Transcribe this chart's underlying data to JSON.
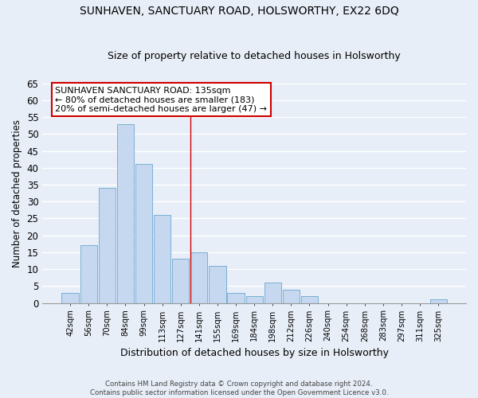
{
  "title": "SUNHAVEN, SANCTUARY ROAD, HOLSWORTHY, EX22 6DQ",
  "subtitle": "Size of property relative to detached houses in Holsworthy",
  "xlabel": "Distribution of detached houses by size in Holsworthy",
  "ylabel": "Number of detached properties",
  "bar_labels": [
    "42sqm",
    "56sqm",
    "70sqm",
    "84sqm",
    "99sqm",
    "113sqm",
    "127sqm",
    "141sqm",
    "155sqm",
    "169sqm",
    "184sqm",
    "198sqm",
    "212sqm",
    "226sqm",
    "240sqm",
    "254sqm",
    "268sqm",
    "283sqm",
    "297sqm",
    "311sqm",
    "325sqm"
  ],
  "bar_values": [
    3,
    17,
    34,
    53,
    41,
    26,
    13,
    15,
    11,
    3,
    2,
    6,
    4,
    2,
    0,
    0,
    0,
    0,
    0,
    0,
    1
  ],
  "bar_color": "#c5d8f0",
  "bar_edge_color": "#7aafd4",
  "highlight_index": 7,
  "highlight_line_color": "#cc0000",
  "ylim": [
    0,
    65
  ],
  "yticks": [
    0,
    5,
    10,
    15,
    20,
    25,
    30,
    35,
    40,
    45,
    50,
    55,
    60,
    65
  ],
  "annotation_title": "SUNHAVEN SANCTUARY ROAD: 135sqm",
  "annotation_line1": "← 80% of detached houses are smaller (183)",
  "annotation_line2": "20% of semi-detached houses are larger (47) →",
  "annotation_box_color": "#ffffff",
  "annotation_box_edge": "#cc0000",
  "footer1": "Contains HM Land Registry data © Crown copyright and database right 2024.",
  "footer2": "Contains public sector information licensed under the Open Government Licence v3.0.",
  "bg_color": "#e8eef8",
  "grid_color": "#ffffff"
}
